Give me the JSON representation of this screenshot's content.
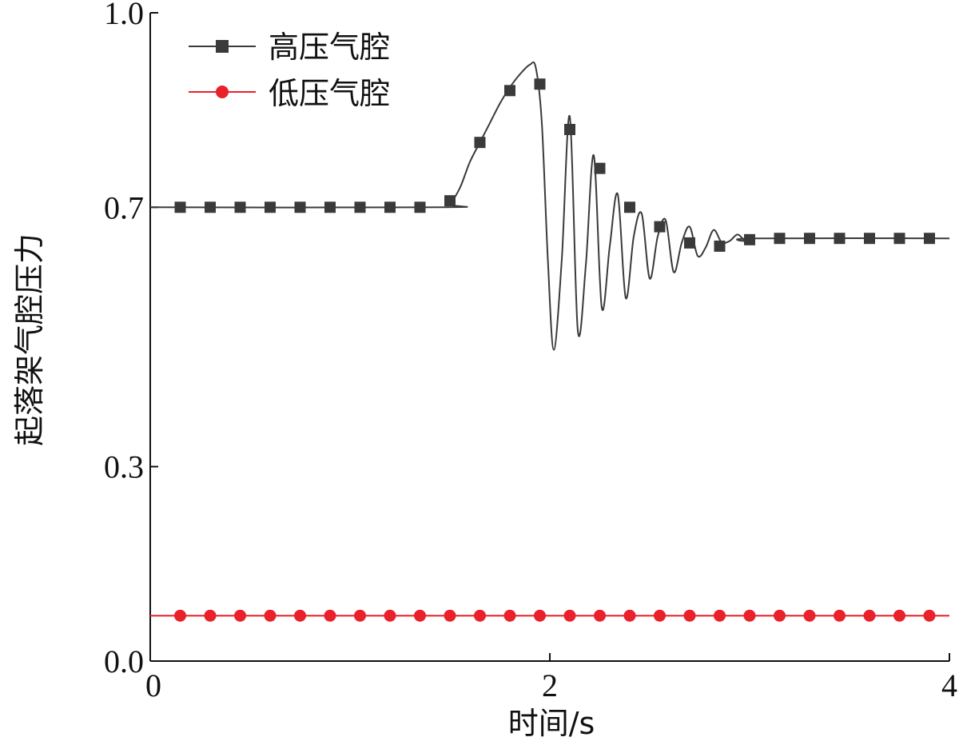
{
  "chart_data": {
    "type": "line",
    "xlabel": "时间/s",
    "ylabel": "起落架气腔压力",
    "xlim": [
      0,
      4
    ],
    "ylim": [
      0,
      1.0
    ],
    "xticks": [
      0,
      2,
      4
    ],
    "yticks": [
      0.0,
      0.3,
      0.7,
      1.0
    ],
    "xtick_labels": [
      "0",
      "2",
      "4"
    ],
    "ytick_labels": [
      "0.0",
      "0.3",
      "0.7",
      "1.0"
    ],
    "grid": false,
    "legend_position": "top-left",
    "series": [
      {
        "name": "高压气腔",
        "color": "#3a3a3a",
        "marker": "square",
        "x": [
          0,
          1.47,
          1.5,
          1.55,
          1.6,
          1.65,
          1.7,
          1.75,
          1.8,
          1.85,
          1.9,
          1.93,
          1.96,
          1.99,
          2.02,
          2.06,
          2.1,
          2.14,
          2.18,
          2.22,
          2.26,
          2.3,
          2.34,
          2.38,
          2.42,
          2.46,
          2.5,
          2.54,
          2.58,
          2.62,
          2.66,
          2.7,
          2.74,
          2.78,
          2.82,
          2.86,
          2.9,
          2.94,
          2.98,
          3.02,
          4.0
        ],
        "y": [
          0.7,
          0.7,
          0.705,
          0.73,
          0.77,
          0.8,
          0.83,
          0.86,
          0.885,
          0.905,
          0.92,
          0.915,
          0.83,
          0.62,
          0.48,
          0.62,
          0.84,
          0.51,
          0.61,
          0.78,
          0.545,
          0.64,
          0.72,
          0.56,
          0.655,
          0.69,
          0.59,
          0.655,
          0.68,
          0.6,
          0.645,
          0.67,
          0.625,
          0.638,
          0.665,
          0.646,
          0.648,
          0.658,
          0.648,
          0.652,
          0.652
        ],
        "markers_x": [
          0.15,
          0.3,
          0.45,
          0.6,
          0.75,
          0.9,
          1.05,
          1.2,
          1.35,
          1.5,
          1.65,
          1.8,
          1.95,
          2.1,
          2.25,
          2.4,
          2.55,
          2.7,
          2.85,
          3.0,
          3.15,
          3.3,
          3.45,
          3.6,
          3.75,
          3.9
        ],
        "markers_y": [
          0.7,
          0.7,
          0.7,
          0.7,
          0.7,
          0.7,
          0.7,
          0.7,
          0.7,
          0.71,
          0.8,
          0.88,
          0.89,
          0.82,
          0.76,
          0.7,
          0.67,
          0.645,
          0.64,
          0.65,
          0.652,
          0.652,
          0.652,
          0.652,
          0.652,
          0.652
        ]
      },
      {
        "name": "低压气腔",
        "color": "#e8212a",
        "marker": "circle",
        "x": [
          0,
          4.0
        ],
        "y": [
          0.07,
          0.07
        ],
        "markers_x": [
          0.15,
          0.3,
          0.45,
          0.6,
          0.75,
          0.9,
          1.05,
          1.2,
          1.35,
          1.5,
          1.65,
          1.8,
          1.95,
          2.1,
          2.25,
          2.4,
          2.55,
          2.7,
          2.85,
          3.0,
          3.15,
          3.3,
          3.45,
          3.6,
          3.75,
          3.9
        ],
        "markers_y": [
          0.07,
          0.07,
          0.07,
          0.07,
          0.07,
          0.07,
          0.07,
          0.07,
          0.07,
          0.07,
          0.07,
          0.07,
          0.07,
          0.07,
          0.07,
          0.07,
          0.07,
          0.07,
          0.07,
          0.07,
          0.07,
          0.07,
          0.07,
          0.07,
          0.07,
          0.07
        ]
      }
    ]
  }
}
